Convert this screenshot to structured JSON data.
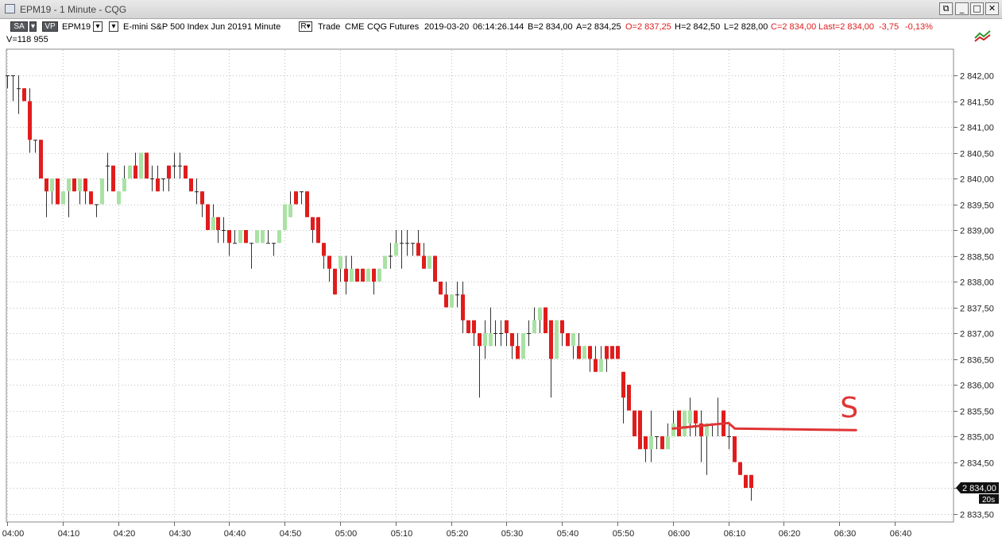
{
  "window": {
    "title": "EPM19 - 1 Minute - CQG",
    "btn_restore": "⧉",
    "btn_minimize": "_",
    "btn_maximize": "□",
    "btn_close": "✕"
  },
  "toolbar": {
    "sa_label": "SA",
    "vp_label": "VP",
    "symbol": "EPM19",
    "dropdown_glyph": "▾",
    "description": "E-mini S&P 500 Index Jun 2019",
    "interval": "1 Minute",
    "r_label": "R▾",
    "trade": "Trade",
    "exchange": "CME",
    "provider": "CQG",
    "kind": "Futures",
    "date": "2019-03-20",
    "time": "06:14:26.144",
    "bid": "B=2 834,00",
    "ask": "A=2 834,25",
    "open": "O=2 837,25",
    "high": "H=2 842,50",
    "low": "L=2 828,00",
    "close": "C=2 834,00",
    "last": "Last=2 834,00",
    "change": "-3,75",
    "change_pct": "-0,13%"
  },
  "volume_label": "V=118 955",
  "colors": {
    "up": "#a9e2a4",
    "down": "#e01c1c",
    "doji": "#222222",
    "annotation": "#e03434",
    "grid": "#c0c0c0",
    "change_red": "#e01c1c"
  },
  "chart_data": {
    "type": "candlestick",
    "interval": "1 Minute",
    "yrange": [
      2833.25,
      2842.25
    ],
    "ytick_values": [
      2833.5,
      2834.0,
      2834.5,
      2835.0,
      2835.5,
      2836.0,
      2836.5,
      2837.0,
      2837.5,
      2838.0,
      2838.5,
      2839.0,
      2839.5,
      2840.0,
      2840.5,
      2841.0,
      2841.5,
      2842.0
    ],
    "ytick_labels": [
      "2 833,50",
      "2 834,00",
      "2 834,50",
      "2 835,00",
      "2 835,50",
      "2 836,00",
      "2 836,50",
      "2 837,00",
      "2 837,50",
      "2 838,00",
      "2 838,50",
      "2 839,00",
      "2 839,50",
      "2 840,00",
      "2 840,50",
      "2 841,00",
      "2 841,50",
      "2 842,00"
    ],
    "xtick_labels": [
      "04:00",
      "04:10",
      "04:20",
      "04:30",
      "04:40",
      "04:50",
      "05:00",
      "05:10",
      "05:20",
      "05:30",
      "05:40",
      "05:50",
      "06:00",
      "06:10",
      "06:20",
      "06:30",
      "06:40"
    ],
    "last_price_label": "2 834,00",
    "timer_label": "20s",
    "annotation": {
      "type": "horizontal-line",
      "price": 2835.15,
      "from_minute": 120,
      "to_minute": 153,
      "letter": "S"
    },
    "candles": [
      [
        2842,
        2842,
        2841.75,
        2842
      ],
      [
        2842,
        2842,
        2841.5,
        2842
      ],
      [
        2841.75,
        2842,
        2841.25,
        2841.75
      ],
      [
        2841.75,
        2841.75,
        2841.5,
        2841.5
      ],
      [
        2841.5,
        2841.75,
        2840.5,
        2840.75
      ],
      [
        2840.75,
        2840.75,
        2840.5,
        2840.75
      ],
      [
        2840.75,
        2840.75,
        2840,
        2840
      ],
      [
        2840,
        2840,
        2839.25,
        2839.75
      ],
      [
        2839.75,
        2840,
        2839.5,
        2840
      ],
      [
        2840,
        2840,
        2839.5,
        2839.5
      ],
      [
        2839.5,
        2839.75,
        2839.5,
        2839.75
      ],
      [
        2839.75,
        2840,
        2839.25,
        2840
      ],
      [
        2840,
        2840,
        2839.75,
        2839.75
      ],
      [
        2839.75,
        2840,
        2839.5,
        2840
      ],
      [
        2840,
        2840,
        2839.5,
        2839.75
      ],
      [
        2839.75,
        2839.75,
        2839.5,
        2839.5
      ],
      [
        2839.5,
        2839.5,
        2839.25,
        2839.5
      ],
      [
        2839.5,
        2840,
        2839.5,
        2840
      ],
      [
        2840.25,
        2840.5,
        2839.75,
        2840.25
      ],
      [
        2840.25,
        2840.25,
        2839.75,
        2839.75
      ],
      [
        2839.5,
        2839.75,
        2839.5,
        2839.75
      ],
      [
        2839.75,
        2840.25,
        2839.75,
        2840
      ],
      [
        2840,
        2840.25,
        2840,
        2840.25
      ],
      [
        2840.25,
        2840.5,
        2840,
        2840
      ],
      [
        2840,
        2840.5,
        2840,
        2840.5
      ],
      [
        2840.5,
        2840.5,
        2840,
        2840
      ],
      [
        2840,
        2840.25,
        2839.75,
        2840
      ],
      [
        2840,
        2840.25,
        2839.75,
        2839.75
      ],
      [
        2840,
        2840,
        2839.75,
        2840
      ],
      [
        2840.25,
        2840.25,
        2839.75,
        2840
      ],
      [
        2840.25,
        2840.5,
        2840,
        2840.25
      ],
      [
        2840.25,
        2840.5,
        2840,
        2840.25
      ],
      [
        2840.25,
        2840.25,
        2840,
        2840
      ],
      [
        2840,
        2840,
        2839.75,
        2839.75
      ],
      [
        2839.75,
        2840,
        2839.5,
        2839.75
      ],
      [
        2839.75,
        2839.75,
        2839.25,
        2839.5
      ],
      [
        2839.5,
        2839.5,
        2839,
        2839
      ],
      [
        2839,
        2839.5,
        2839,
        2839.25
      ],
      [
        2839.25,
        2839.25,
        2838.75,
        2839
      ],
      [
        2839,
        2839.25,
        2838.75,
        2839
      ],
      [
        2839,
        2839,
        2838.5,
        2838.75
      ],
      [
        2838.75,
        2839,
        2838.75,
        2838.75
      ],
      [
        2838.75,
        2839,
        2838.75,
        2839
      ],
      [
        2839,
        2839,
        2838.75,
        2838.75
      ],
      [
        2838.75,
        2838.75,
        2838.25,
        2838.75
      ],
      [
        2838.75,
        2839,
        2838.75,
        2839
      ],
      [
        2838.75,
        2839,
        2838.75,
        2839
      ],
      [
        2838.75,
        2839,
        2838.75,
        2838.75
      ],
      [
        2838.75,
        2838.75,
        2838.5,
        2838.75
      ],
      [
        2838.75,
        2839,
        2838.75,
        2839
      ],
      [
        2839,
        2839.5,
        2839,
        2839.5
      ],
      [
        2839.25,
        2839.75,
        2839.25,
        2839.5
      ],
      [
        2839.75,
        2839.75,
        2839.5,
        2839.5
      ],
      [
        2839.75,
        2839.75,
        2839.5,
        2839.75
      ],
      [
        2839.75,
        2839.75,
        2839.25,
        2839.25
      ],
      [
        2839.25,
        2839.25,
        2838.75,
        2839
      ],
      [
        2839.25,
        2839.25,
        2838.75,
        2838.75
      ],
      [
        2838.75,
        2838.75,
        2838.25,
        2838.5
      ],
      [
        2838.5,
        2838.5,
        2838,
        2838.25
      ],
      [
        2838.25,
        2838.25,
        2837.75,
        2837.75
      ],
      [
        2838.25,
        2838.5,
        2838,
        2838.5
      ],
      [
        2838.25,
        2838.5,
        2837.75,
        2838
      ],
      [
        2838,
        2838.5,
        2838,
        2838.25
      ],
      [
        2838.25,
        2838.25,
        2838,
        2838
      ],
      [
        2838.25,
        2838.25,
        2838,
        2838
      ],
      [
        2838,
        2838.25,
        2838,
        2838.25
      ],
      [
        2838.25,
        2838.25,
        2837.75,
        2838
      ],
      [
        2838,
        2838.25,
        2838,
        2838.25
      ],
      [
        2838.25,
        2838.5,
        2838.25,
        2838.5
      ],
      [
        2838.5,
        2838.75,
        2838.25,
        2838.5
      ],
      [
        2838.5,
        2839,
        2838.5,
        2838.75
      ],
      [
        2838.75,
        2839,
        2838.25,
        2838.75
      ],
      [
        2838.75,
        2839,
        2838.5,
        2838.75
      ],
      [
        2838.75,
        2838.75,
        2838.5,
        2838.75
      ],
      [
        2838.75,
        2839,
        2838.5,
        2838.5
      ],
      [
        2838.5,
        2838.75,
        2838.25,
        2838.25
      ],
      [
        2838.25,
        2838.5,
        2838.25,
        2838.5
      ],
      [
        2838.5,
        2838.5,
        2838,
        2838
      ],
      [
        2838,
        2838,
        2837.75,
        2837.75
      ],
      [
        2837.75,
        2838,
        2837.5,
        2837.5
      ],
      [
        2837.5,
        2837.75,
        2837.5,
        2837.75
      ],
      [
        2837.75,
        2838,
        2837.5,
        2837.75
      ],
      [
        2837.75,
        2838,
        2837,
        2837.25
      ],
      [
        2837.25,
        2837.25,
        2837,
        2837
      ],
      [
        2837.25,
        2837.25,
        2836.75,
        2837
      ],
      [
        2837,
        2837,
        2835.75,
        2836.75
      ],
      [
        2836.75,
        2837.25,
        2836.5,
        2837
      ],
      [
        2836.75,
        2837.5,
        2836.75,
        2837
      ],
      [
        2837,
        2837.25,
        2836.75,
        2837
      ],
      [
        2837,
        2837.25,
        2836.75,
        2837
      ],
      [
        2837.25,
        2837.25,
        2836.75,
        2837
      ],
      [
        2837,
        2837,
        2836.5,
        2836.75
      ],
      [
        2836.75,
        2837,
        2836.5,
        2836.5
      ],
      [
        2836.5,
        2837,
        2836.5,
        2837
      ],
      [
        2837,
        2837.25,
        2836.75,
        2837
      ],
      [
        2837,
        2837.5,
        2837,
        2837.25
      ],
      [
        2837.25,
        2837.5,
        2837,
        2837.5
      ],
      [
        2837.5,
        2837.5,
        2837,
        2837
      ],
      [
        2837.25,
        2837.25,
        2835.75,
        2836.5
      ],
      [
        2836.5,
        2837.25,
        2836.5,
        2837.25
      ],
      [
        2837.25,
        2837.25,
        2836.75,
        2837
      ],
      [
        2837,
        2837,
        2836.75,
        2836.75
      ],
      [
        2836.75,
        2837,
        2836.5,
        2837
      ],
      [
        2836.75,
        2837,
        2836.5,
        2836.5
      ],
      [
        2836.5,
        2836.75,
        2836.5,
        2836.75
      ],
      [
        2836.75,
        2836.75,
        2836.25,
        2836.5
      ],
      [
        2836.5,
        2836.75,
        2836.25,
        2836.25
      ],
      [
        2836.25,
        2836.75,
        2836.25,
        2836.5
      ],
      [
        2836.75,
        2836.75,
        2836.25,
        2836.5
      ],
      [
        2836.75,
        2836.75,
        2836.5,
        2836.5
      ],
      [
        2836.75,
        2836.75,
        2836.5,
        2836.5
      ],
      [
        2836.25,
        2836.25,
        2835.25,
        2835.75
      ],
      [
        2836,
        2836,
        2835.5,
        2835.5
      ],
      [
        2835.5,
        2835.5,
        2835,
        2835
      ],
      [
        2835.5,
        2835.5,
        2834.75,
        2834.75
      ],
      [
        2835,
        2835,
        2834.5,
        2834.75
      ],
      [
        2834.75,
        2835.5,
        2834.5,
        2835
      ],
      [
        2835,
        2835,
        2834.75,
        2835
      ],
      [
        2835,
        2835,
        2834.75,
        2834.75
      ],
      [
        2834.75,
        2835.25,
        2834.75,
        2835
      ],
      [
        2835,
        2835.5,
        2835,
        2835.25
      ],
      [
        2835.5,
        2835.5,
        2835,
        2835
      ],
      [
        2835,
        2835.5,
        2835,
        2835.5
      ],
      [
        2835.25,
        2835.75,
        2835,
        2835.5
      ],
      [
        2835.5,
        2835.5,
        2835,
        2835.25
      ],
      [
        2835.25,
        2835.5,
        2834.5,
        2835
      ],
      [
        2835,
        2835.25,
        2834.25,
        2835.25
      ],
      [
        2835.25,
        2835.25,
        2835,
        2835.25
      ],
      [
        2835.25,
        2835.75,
        2835,
        2835.25
      ],
      [
        2835.5,
        2835.5,
        2835,
        2835
      ],
      [
        2835,
        2835.25,
        2834.75,
        2835
      ],
      [
        2835,
        2835,
        2834.5,
        2834.5
      ],
      [
        2834.5,
        2834.5,
        2834.25,
        2834.25
      ],
      [
        2834.25,
        2834.25,
        2834,
        2834
      ],
      [
        2834.25,
        2834.25,
        2833.75,
        2834
      ]
    ]
  }
}
